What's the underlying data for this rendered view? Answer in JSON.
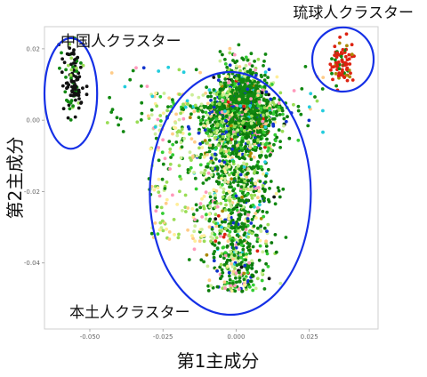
{
  "chart_data": {
    "type": "scatter",
    "title": "",
    "xlabel": "第1主成分",
    "ylabel": "第2主成分",
    "xlim": [
      -0.0655,
      0.0485
    ],
    "ylim": [
      -0.0585,
      0.0262
    ],
    "x_ticks": [
      -0.05,
      -0.025,
      0.0,
      0.025
    ],
    "x_tick_labels": [
      "-0.050",
      "-0.025",
      "0.000",
      "0.025"
    ],
    "y_ticks": [
      0.02,
      0.0,
      -0.02,
      -0.04
    ],
    "y_tick_labels": [
      "0.02",
      "0.00",
      "-0.02",
      "-0.04"
    ],
    "grid": false,
    "legend": "none",
    "clusters": [
      {
        "label": "中国人クラスター",
        "color": "#111111",
        "approx_points": 110,
        "center": [
          -0.0555,
          0.0115
        ],
        "spread": [
          0.0018,
          0.0055
        ],
        "ellipse": {
          "cx": -0.0565,
          "cy": 0.0075,
          "rx": 0.009,
          "ry": 0.0155
        }
      },
      {
        "label": "琉球人クラスター",
        "color": "#dd2211",
        "approx_points": 80,
        "center": [
          0.036,
          0.016
        ],
        "spread": [
          0.002,
          0.003
        ],
        "ellipse": {
          "cx": 0.0365,
          "cy": 0.017,
          "rx": 0.0105,
          "ry": 0.009
        }
      },
      {
        "label": "本土人クラスター",
        "color": "#118811",
        "approx_points": 3500,
        "center": [
          0.002,
          0.004
        ],
        "spread": [
          0.005,
          0.006
        ],
        "tail_to_y": -0.048,
        "ellipse": {
          "cx": -0.002,
          "cy": -0.0205,
          "rx": 0.0275,
          "ry": 0.034
        }
      }
    ],
    "point_colors": [
      "#118811",
      "#0b7a0b",
      "#33cc33",
      "#99dd55",
      "#ccee99",
      "#ffee99",
      "#ffcc88",
      "#1133cc",
      "#22ccdd",
      "#ff99bb",
      "#dd2211",
      "#aa8800",
      "#111111"
    ],
    "ellipse_color": "#1530e6"
  }
}
